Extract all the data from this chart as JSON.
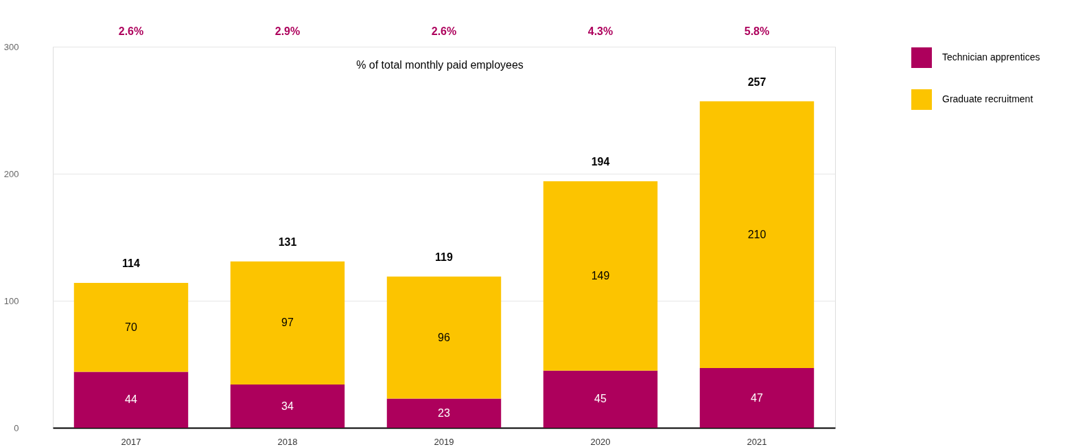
{
  "chart_data": {
    "type": "bar",
    "stacked": true,
    "categories": [
      "2017",
      "2018",
      "2019",
      "2020",
      "2021"
    ],
    "series": [
      {
        "name": "Technician apprentices",
        "color": "#ad005c",
        "values": [
          44,
          34,
          23,
          45,
          47
        ]
      },
      {
        "name": "Graduate recruitment",
        "color": "#fcc400",
        "values": [
          70,
          97,
          96,
          149,
          210
        ]
      }
    ],
    "data_labels": true,
    "totals": [
      "114",
      "131",
      "119",
      "194",
      "257"
    ],
    "ylim": [
      0,
      300
    ],
    "yticks": [
      0,
      100,
      200,
      300
    ],
    "grid": "y",
    "legend": "top right",
    "annotations": [
      "% of total monthly paid employees",
      "2.6%",
      "2.9%",
      "2.6%",
      "4.3%",
      "5.8%"
    ]
  }
}
